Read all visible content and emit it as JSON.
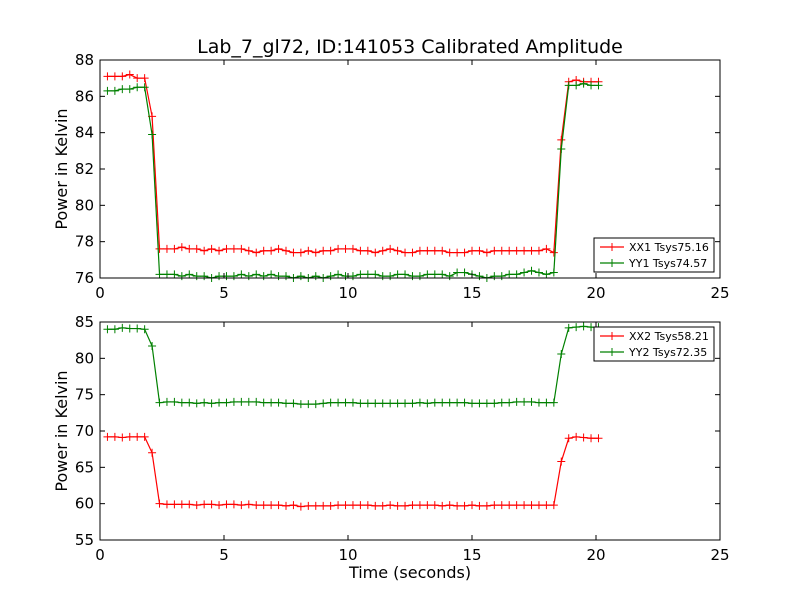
{
  "figure": {
    "title": "Lab_7_gl72, ID:141053 Calibrated Amplitude",
    "xlabel": "Time (seconds)"
  },
  "chart_data": [
    {
      "type": "line",
      "ylabel": "Power in Kelvin",
      "xlim": [
        0,
        25
      ],
      "ylim": [
        76,
        88
      ],
      "xticks": [
        0,
        5,
        10,
        15,
        20,
        25
      ],
      "yticks": [
        76,
        78,
        80,
        82,
        84,
        86,
        88
      ],
      "grid": false,
      "legend": "bottom-right",
      "x": [
        0.3,
        0.6,
        0.9,
        1.2,
        1.5,
        1.8,
        2.1,
        2.4,
        2.7,
        3.0,
        3.3,
        3.6,
        3.9,
        4.2,
        4.5,
        4.8,
        5.1,
        5.4,
        5.7,
        6.0,
        6.3,
        6.6,
        6.9,
        7.2,
        7.5,
        7.8,
        8.1,
        8.4,
        8.7,
        9.0,
        9.3,
        9.6,
        9.9,
        10.2,
        10.5,
        10.8,
        11.1,
        11.4,
        11.7,
        12.0,
        12.3,
        12.6,
        12.9,
        13.2,
        13.5,
        13.8,
        14.1,
        14.4,
        14.7,
        15.0,
        15.3,
        15.6,
        15.9,
        16.2,
        16.5,
        16.8,
        17.1,
        17.4,
        17.7,
        18.0,
        18.3,
        18.6,
        18.9,
        19.2,
        19.5,
        19.8,
        20.1
      ],
      "series": [
        {
          "name": "XX1 Tsys75.16",
          "color": "#ff0000",
          "values": [
            87.1,
            87.1,
            87.1,
            87.2,
            87.0,
            87.0,
            84.9,
            77.6,
            77.6,
            77.6,
            77.7,
            77.6,
            77.6,
            77.5,
            77.6,
            77.5,
            77.6,
            77.6,
            77.6,
            77.5,
            77.4,
            77.5,
            77.5,
            77.6,
            77.5,
            77.4,
            77.4,
            77.5,
            77.4,
            77.5,
            77.5,
            77.6,
            77.6,
            77.6,
            77.5,
            77.5,
            77.4,
            77.5,
            77.6,
            77.5,
            77.4,
            77.4,
            77.5,
            77.5,
            77.5,
            77.5,
            77.4,
            77.4,
            77.4,
            77.5,
            77.5,
            77.4,
            77.5,
            77.5,
            77.5,
            77.5,
            77.5,
            77.5,
            77.5,
            77.6,
            77.4,
            83.6,
            86.8,
            86.9,
            86.8,
            86.8,
            86.8
          ]
        },
        {
          "name": "YY1 Tsys74.57",
          "color": "#008000",
          "values": [
            86.3,
            86.3,
            86.4,
            86.4,
            86.5,
            86.5,
            83.9,
            76.2,
            76.2,
            76.2,
            76.1,
            76.2,
            76.1,
            76.1,
            76.0,
            76.1,
            76.1,
            76.1,
            76.2,
            76.1,
            76.2,
            76.1,
            76.2,
            76.1,
            76.1,
            76.0,
            76.1,
            76.0,
            76.1,
            76.0,
            76.1,
            76.2,
            76.1,
            76.1,
            76.2,
            76.2,
            76.2,
            76.1,
            76.1,
            76.2,
            76.2,
            76.1,
            76.1,
            76.2,
            76.2,
            76.2,
            76.1,
            76.3,
            76.3,
            76.2,
            76.1,
            76.0,
            76.1,
            76.1,
            76.2,
            76.2,
            76.3,
            76.4,
            76.3,
            76.2,
            76.3,
            83.1,
            86.6,
            86.6,
            86.7,
            86.6,
            86.6
          ]
        }
      ]
    },
    {
      "type": "line",
      "ylabel": "Power in Kelvin",
      "xlabel": "Time (seconds)",
      "xlim": [
        0,
        25
      ],
      "ylim": [
        55,
        85
      ],
      "xticks": [
        0,
        5,
        10,
        15,
        20,
        25
      ],
      "yticks": [
        55,
        60,
        65,
        70,
        75,
        80,
        85
      ],
      "grid": false,
      "legend": "top-right",
      "x": [
        0.3,
        0.6,
        0.9,
        1.2,
        1.5,
        1.8,
        2.1,
        2.4,
        2.7,
        3.0,
        3.3,
        3.6,
        3.9,
        4.2,
        4.5,
        4.8,
        5.1,
        5.4,
        5.7,
        6.0,
        6.3,
        6.6,
        6.9,
        7.2,
        7.5,
        7.8,
        8.1,
        8.4,
        8.7,
        9.0,
        9.3,
        9.6,
        9.9,
        10.2,
        10.5,
        10.8,
        11.1,
        11.4,
        11.7,
        12.0,
        12.3,
        12.6,
        12.9,
        13.2,
        13.5,
        13.8,
        14.1,
        14.4,
        14.7,
        15.0,
        15.3,
        15.6,
        15.9,
        16.2,
        16.5,
        16.8,
        17.1,
        17.4,
        17.7,
        18.0,
        18.3,
        18.6,
        18.9,
        19.2,
        19.5,
        19.8,
        20.1
      ],
      "series": [
        {
          "name": "XX2 Tsys58.21",
          "color": "#ff0000",
          "values": [
            69.2,
            69.2,
            69.1,
            69.2,
            69.2,
            69.2,
            67.0,
            60.0,
            59.9,
            59.9,
            59.9,
            59.9,
            59.8,
            59.9,
            59.9,
            59.8,
            59.9,
            59.9,
            59.8,
            59.9,
            59.8,
            59.8,
            59.8,
            59.8,
            59.7,
            59.8,
            59.6,
            59.7,
            59.7,
            59.7,
            59.7,
            59.8,
            59.8,
            59.8,
            59.8,
            59.8,
            59.7,
            59.7,
            59.8,
            59.7,
            59.7,
            59.8,
            59.8,
            59.8,
            59.8,
            59.7,
            59.8,
            59.7,
            59.7,
            59.8,
            59.7,
            59.7,
            59.8,
            59.8,
            59.8,
            59.8,
            59.8,
            59.8,
            59.8,
            59.8,
            59.8,
            65.8,
            69.0,
            69.2,
            69.1,
            69.0,
            69.0
          ]
        },
        {
          "name": "YY2 Tsys72.35",
          "color": "#008000",
          "values": [
            84.0,
            84.0,
            84.2,
            84.1,
            84.1,
            84.0,
            81.7,
            73.9,
            74.0,
            74.0,
            73.9,
            73.9,
            73.8,
            73.9,
            73.8,
            73.9,
            73.9,
            74.0,
            74.0,
            74.0,
            74.0,
            73.9,
            73.9,
            73.9,
            73.8,
            73.8,
            73.7,
            73.7,
            73.7,
            73.8,
            73.9,
            73.9,
            73.9,
            73.9,
            73.8,
            73.8,
            73.8,
            73.8,
            73.8,
            73.8,
            73.8,
            73.8,
            73.9,
            73.8,
            73.9,
            73.9,
            73.9,
            73.9,
            73.9,
            73.8,
            73.8,
            73.8,
            73.8,
            73.9,
            73.9,
            74.0,
            74.0,
            74.0,
            73.9,
            73.9,
            73.9,
            80.6,
            84.2,
            84.3,
            84.4,
            84.3,
            84.3
          ]
        }
      ]
    }
  ]
}
